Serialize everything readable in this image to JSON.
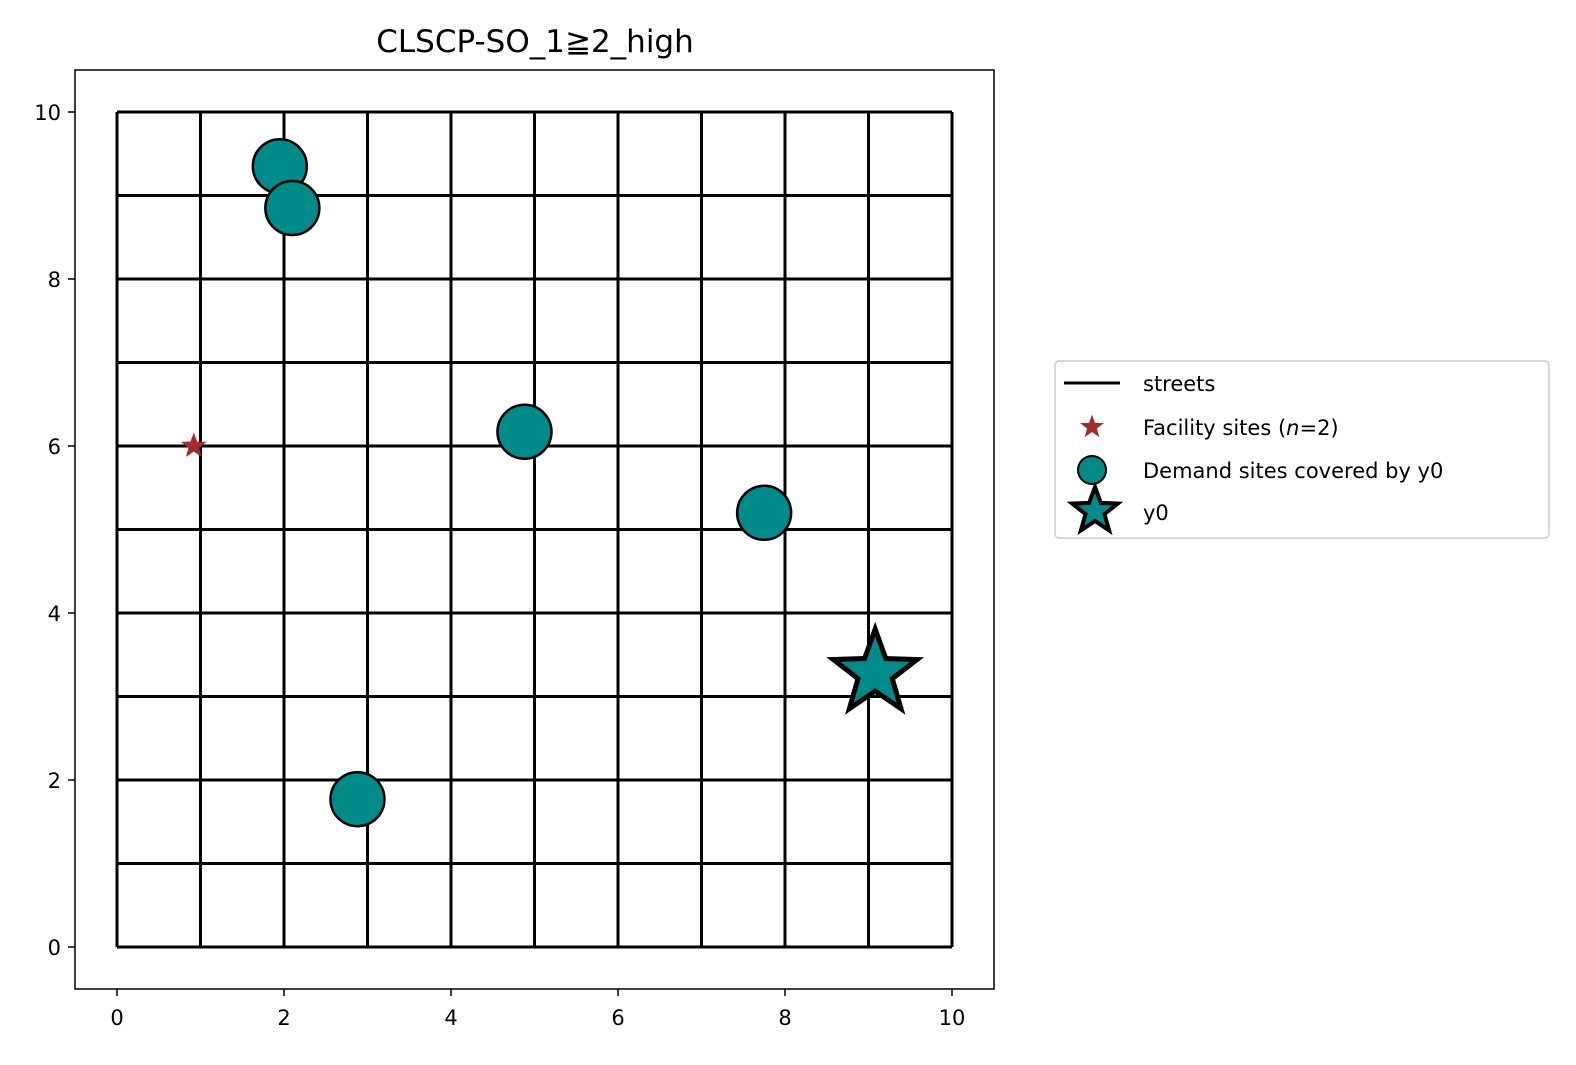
{
  "chart_data": {
    "type": "scatter",
    "title": "CLSCP-SO_1≧2_high",
    "xlabel": "",
    "ylabel": "",
    "xlim": [
      -0.5,
      10.5
    ],
    "ylim": [
      -0.5,
      10.5
    ],
    "xticks": [
      "0",
      "2",
      "4",
      "6",
      "8",
      "10"
    ],
    "yticks": [
      "0",
      "2",
      "4",
      "6",
      "8",
      "10"
    ],
    "grid": false,
    "legend_position": "outside-right",
    "streets": {
      "name": "streets",
      "color": "#000000",
      "grid_lines": [
        0,
        1,
        2,
        3,
        4,
        5,
        6,
        7,
        8,
        9,
        10
      ]
    },
    "series": [
      {
        "name": "Facility sites (n=2)",
        "legend_label_prefix": "Facility sites (",
        "legend_label_var": "n",
        "legend_label_suffix": "=2)",
        "marker": "star-small",
        "color": "#a52a2a",
        "points": [
          {
            "x": 0.92,
            "y": 6.0
          }
        ]
      },
      {
        "name": "Demand sites covered by y0",
        "marker": "circle",
        "color": "#008b8b",
        "points": [
          {
            "x": 1.95,
            "y": 9.35
          },
          {
            "x": 2.1,
            "y": 8.85
          },
          {
            "x": 4.88,
            "y": 6.17
          },
          {
            "x": 7.75,
            "y": 5.2
          },
          {
            "x": 2.88,
            "y": 1.77
          }
        ]
      },
      {
        "name": "y0",
        "marker": "star-large",
        "color": "#008b8b",
        "points": [
          {
            "x": 9.08,
            "y": 3.28
          }
        ]
      }
    ]
  }
}
